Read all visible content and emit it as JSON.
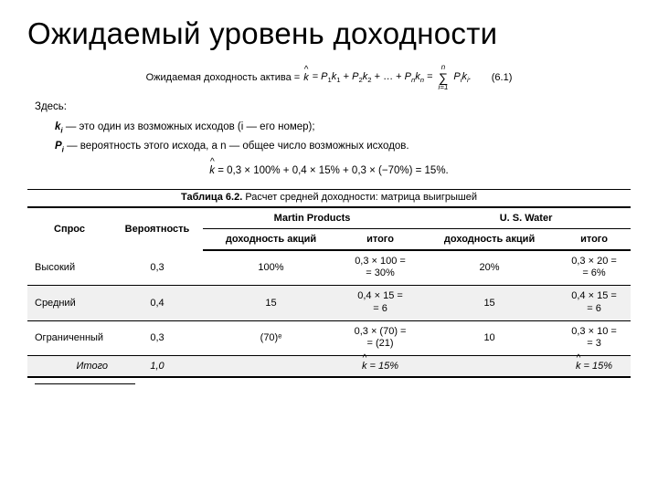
{
  "title": "Ожидаемый уровень доходности",
  "formula": {
    "label": "Ожидаемая доходность актива =",
    "eq_num": "(6.1)",
    "sigma_top": "n",
    "sigma_bot": "i=1"
  },
  "defs": {
    "here": "Здесь:",
    "k_line": " — это один из возможных исходов (i — его номер);",
    "p_line": " — вероятность этого исхода, a n — общее число возможных исходов."
  },
  "calc": " = 0,3 × 100% + 0,4 × 15% + 0,3 × (−70%) = 15%.",
  "table": {
    "caption_bold": "Таблица 6.2.",
    "caption_rest": " Расчет средней доходности: матрица выигрышей",
    "head": {
      "demand": "Спрос",
      "prob": "Вероятность",
      "martin": "Martin Products",
      "uswater": "U. S. Water",
      "yield": "доходность акций",
      "total": "итого"
    },
    "rows": [
      {
        "demand": "Высокий",
        "prob": "0,3",
        "m_yield": "100%",
        "m_total": "0,3 × 100 = = 30%",
        "u_yield": "20%",
        "u_total": "0,3 × 20 = = 6%",
        "shaded": false
      },
      {
        "demand": "Средний",
        "prob": "0,4",
        "m_yield": "15",
        "m_total": "0,4 × 15 = = 6",
        "u_yield": "15",
        "u_total": "0,4 × 15 = = 6",
        "shaded": true
      },
      {
        "demand": "Ограниченный",
        "prob": "0,3",
        "m_yield": "(70)ᵉ",
        "m_total": "0,3 × (70) = = (21)",
        "u_yield": "10",
        "u_total": "0,3 × 10 = = 3",
        "shaded": false
      }
    ],
    "total_row": {
      "label": "Итого",
      "prob": "1,0",
      "m_total": " = 15%",
      "u_total": " = 15%"
    }
  }
}
